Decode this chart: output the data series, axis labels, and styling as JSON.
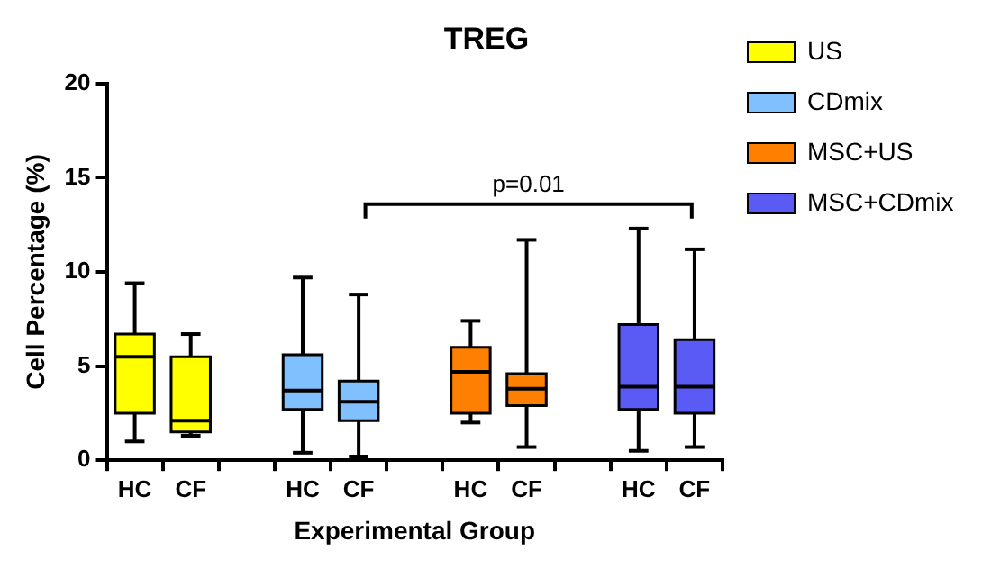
{
  "chart_data": {
    "type": "box",
    "title": "TREG",
    "xlabel": "Experimental Group",
    "ylabel": "Cell Percentage (%)",
    "categories": [
      "HC",
      "CF",
      null,
      "HC",
      "CF",
      null,
      "HC",
      "CF",
      null,
      "HC",
      "CF"
    ],
    "series": [
      {
        "name": "US",
        "color": "#ffff00",
        "boxes": [
          {
            "low": 1.0,
            "q1": 2.5,
            "median": 5.5,
            "q3": 6.7,
            "high": 9.4
          },
          {
            "low": 1.3,
            "q1": 1.5,
            "median": 2.1,
            "q3": 5.5,
            "high": 6.7
          },
          null,
          null,
          null,
          null,
          null,
          null,
          null,
          null,
          null
        ]
      },
      {
        "name": "CDmix",
        "color": "#80c0ff",
        "boxes": [
          null,
          null,
          null,
          {
            "low": 0.4,
            "q1": 2.7,
            "median": 3.7,
            "q3": 5.6,
            "high": 9.7
          },
          {
            "low": 0.2,
            "q1": 2.1,
            "median": 3.1,
            "q3": 4.2,
            "high": 8.8
          },
          null,
          null,
          null,
          null,
          null,
          null
        ]
      },
      {
        "name": "MSC+US",
        "color": "#ff8000",
        "boxes": [
          null,
          null,
          null,
          null,
          null,
          null,
          {
            "low": 2.0,
            "q1": 2.5,
            "median": 4.7,
            "q3": 6.0,
            "high": 7.4
          },
          {
            "low": 0.7,
            "q1": 2.9,
            "median": 3.8,
            "q3": 4.6,
            "high": 11.7
          },
          null,
          null,
          null
        ]
      },
      {
        "name": "MSC+CDmix",
        "color": "#5a5af5",
        "boxes": [
          null,
          null,
          null,
          null,
          null,
          null,
          null,
          null,
          null,
          {
            "low": 0.5,
            "q1": 2.7,
            "median": 3.9,
            "q3": 7.2,
            "high": 12.3
          },
          {
            "low": 0.7,
            "q1": 2.5,
            "median": 3.9,
            "q3": 6.4,
            "high": 11.2
          }
        ]
      }
    ],
    "ylim": [
      0,
      20
    ],
    "yticks": [
      0,
      5,
      10,
      15,
      20
    ],
    "grid": false,
    "legend": "right",
    "annotations": [
      "p=0.01"
    ]
  }
}
